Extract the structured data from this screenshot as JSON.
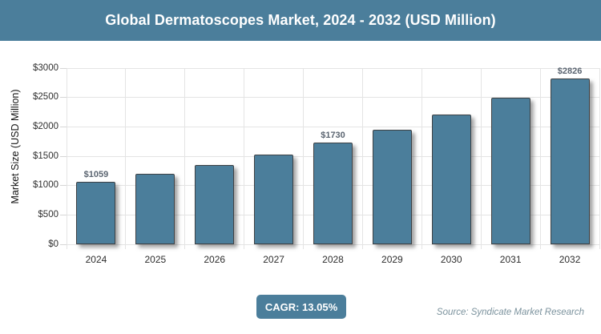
{
  "header": {
    "title": "Global Dermatoscopes Market, 2024 - 2032 (USD Million)"
  },
  "footer": {
    "cagr_label": "CAGR: 13.05%",
    "source": "Source: Syndicate Market Research"
  },
  "colors": {
    "accent_blue": "#4b7e9b",
    "bar_fill": "#4b7e9b",
    "bar_border": "#3e4144",
    "gridline": "#e4e4e4",
    "tick": "#d6d6d6",
    "data_label": "#5a6470",
    "source_text": "#7b929d",
    "title_text": "#ffffff"
  },
  "chart_data": {
    "type": "bar",
    "title": "Global Dermatoscopes Market, 2024 - 2032 (USD Million)",
    "categories": [
      "2024",
      "2025",
      "2026",
      "2027",
      "2028",
      "2029",
      "2030",
      "2031",
      "2032"
    ],
    "values": [
      1059,
      1197,
      1353,
      1530,
      1730,
      1955,
      2210,
      2499,
      2826
    ],
    "point_labels": [
      "$1059",
      "",
      "",
      "",
      "$1730",
      "",
      "",
      "",
      "$2826"
    ],
    "xlabel": "",
    "ylabel": "Market Size (USD Million)",
    "ylim": [
      0,
      3000
    ],
    "ytick_step": 500,
    "ytick_labels": [
      "$0",
      "$500",
      "$1000",
      "$1500",
      "$2000",
      "$2500",
      "$3000"
    ],
    "grid": "horizontal and vertical, light gray",
    "legend": "none",
    "annotations": [
      "CAGR: 13.05%"
    ],
    "source": "Source: Syndicate Market Research"
  }
}
